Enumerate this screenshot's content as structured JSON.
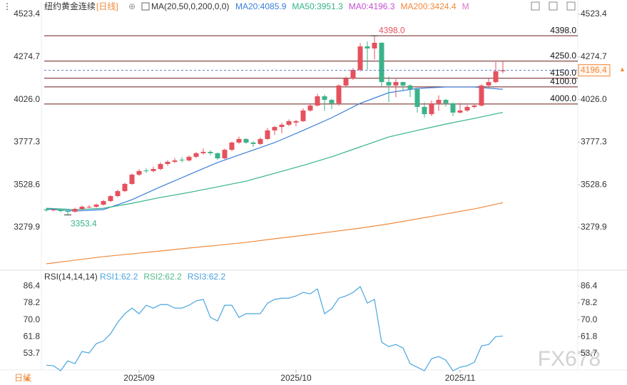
{
  "chart_data": [
    {
      "type": "candlestick",
      "title": "纽约黄金连续",
      "period": "[日线]",
      "indicator": "MA(20,50,0,200,0,0)",
      "up_color": "#e5515d",
      "down_color": "#3bb389",
      "open": [
        3385,
        3380,
        3384,
        3376,
        3372,
        3388,
        3398,
        3401,
        3413,
        3434,
        3463,
        3492,
        3534,
        3588,
        3612,
        3609,
        3621,
        3650,
        3663,
        3675,
        3671,
        3692,
        3713,
        3721,
        3713,
        3683,
        3733,
        3775,
        3796,
        3775,
        3767,
        3796,
        3846,
        3866,
        3879,
        3892,
        3900,
        3962,
        3991,
        4045,
        4024,
        4004,
        4108,
        4149,
        4199,
        4336,
        4324,
        4357,
        4128,
        4108,
        4128,
        4108,
        4087,
        3983,
        3941,
        4004,
        4024,
        4004,
        3950,
        3962,
        3983,
        3991,
        4108,
        4128,
        4191
      ],
      "high": [
        3392,
        3390,
        3391,
        3382,
        3395,
        3408,
        3410,
        3420,
        3441,
        3470,
        3500,
        3541,
        3595,
        3620,
        3625,
        3635,
        3660,
        3672,
        3685,
        3690,
        3700,
        3720,
        3740,
        3730,
        3718,
        3740,
        3782,
        3810,
        3800,
        3782,
        3805,
        3860,
        3872,
        3890,
        3910,
        3908,
        3975,
        4000,
        4060,
        4055,
        4030,
        4115,
        4160,
        4210,
        4355,
        4365,
        4398.0,
        4360,
        4160,
        4145,
        4130,
        4115,
        4090,
        4010,
        4020,
        4050,
        4030,
        4010,
        4005,
        3995,
        4000,
        4115,
        4150,
        4245,
        4250
      ],
      "low": [
        3372,
        3374,
        3368,
        3353.4,
        3366,
        3382,
        3392,
        3395,
        3408,
        3428,
        3456,
        3486,
        3528,
        3580,
        3598,
        3602,
        3614,
        3640,
        3655,
        3660,
        3665,
        3684,
        3705,
        3702,
        3675,
        3678,
        3726,
        3768,
        3768,
        3750,
        3760,
        3790,
        3820,
        3830,
        3870,
        3870,
        3895,
        3955,
        3985,
        3960,
        3970,
        3990,
        4100,
        4140,
        4190,
        4200,
        4260,
        4100,
        4010,
        4040,
        4080,
        4040,
        3950,
        3920,
        3930,
        3960,
        3985,
        3930,
        3945,
        3955,
        3975,
        3985,
        4095,
        4120,
        4180
      ],
      "close": [
        3380,
        3384,
        3376,
        3372,
        3388,
        3401,
        3401,
        3413,
        3434,
        3463,
        3492,
        3534,
        3588,
        3609,
        3609,
        3621,
        3650,
        3663,
        3671,
        3671,
        3692,
        3713,
        3721,
        3713,
        3683,
        3733,
        3775,
        3796,
        3775,
        3767,
        3796,
        3846,
        3866,
        3879,
        3900,
        3900,
        3962,
        3991,
        4045,
        4024,
        4004,
        4108,
        4149,
        4199,
        4336,
        4324,
        4357,
        4128,
        4108,
        4128,
        4108,
        4087,
        3983,
        3941,
        4004,
        4024,
        4004,
        3950,
        3962,
        3983,
        3991,
        4108,
        4128,
        4191,
        4196.4
      ],
      "series": [
        {
          "name": "MA20:4085.9",
          "color": "#3a7fd8",
          "x": [
            0,
            4,
            8,
            12,
            16,
            20,
            24,
            28,
            32,
            36,
            40,
            44,
            48,
            52,
            56,
            60,
            64
          ],
          "values": [
            3388,
            3376,
            3384,
            3442,
            3517,
            3588,
            3659,
            3717,
            3775,
            3846,
            3920,
            4004,
            4066,
            4091,
            4099,
            4099,
            4085.9
          ]
        },
        {
          "name": "MA50:3951.3",
          "color": "#35b38a",
          "x": [
            0,
            4,
            8,
            12,
            16,
            20,
            24,
            28,
            32,
            36,
            40,
            44,
            48,
            52,
            56,
            60,
            64
          ],
          "values": [
            3392,
            3384,
            3392,
            3421,
            3455,
            3484,
            3517,
            3550,
            3596,
            3642,
            3692,
            3750,
            3808,
            3846,
            3883,
            3916,
            3951.3
          ]
        },
        {
          "name": "MA200:3424.4",
          "color": "#f08a3c",
          "x": [
            0,
            4,
            8,
            12,
            16,
            20,
            24,
            28,
            32,
            36,
            40,
            44,
            48,
            52,
            56,
            60,
            64
          ],
          "values": [
            3068,
            3089,
            3110,
            3126,
            3143,
            3160,
            3176,
            3193,
            3214,
            3234,
            3255,
            3276,
            3301,
            3330,
            3359,
            3388,
            3424.4
          ]
        }
      ],
      "legend_extra": [
        {
          "text": "MA0:4196.3",
          "color": "#c64fd0"
        },
        {
          "text": "M",
          "color": "#e070c8"
        }
      ],
      "levels": [
        {
          "value": 4398,
          "label": "4398.0"
        },
        {
          "value": 4250,
          "label": "4250.0"
        },
        {
          "value": 4150,
          "label": "4150.0"
        },
        {
          "value": 4100,
          "label": "4100.0"
        },
        {
          "value": 4000,
          "label": "4000.0"
        }
      ],
      "max_label": "4398.0",
      "min_label": "3353.4",
      "ylim": [
        3034.8,
        4606.6
      ],
      "yticks": [
        4523.4,
        4274.7,
        {
          "value": 4026,
          "label": "4026.0"
        },
        3777.3,
        3528.6,
        3279.9
      ]
    },
    {
      "type": "line",
      "title": "RSI(14,14,14)",
      "categories": [
        null,
        null,
        null,
        null,
        null,
        null,
        null,
        null,
        null,
        null,
        null,
        null,
        null,
        "2025/09",
        null,
        null,
        null,
        null,
        null,
        null,
        null,
        null,
        null,
        null,
        null,
        null,
        null,
        null,
        null,
        null,
        null,
        null,
        null,
        null,
        null,
        "2025/10",
        null,
        null,
        null,
        null,
        null,
        null,
        null,
        null,
        null,
        null,
        null,
        null,
        null,
        null,
        null,
        null,
        null,
        null,
        null,
        null,
        null,
        null,
        "2025/11",
        null,
        null,
        null,
        null,
        null,
        null
      ],
      "series": [
        {
          "name": "RSI1:62.2",
          "color": "#4aa6e0",
          "values": [
            48.1,
            47.8,
            45.4,
            50.2,
            48.8,
            54.7,
            54.0,
            58.5,
            59.8,
            63.3,
            68.8,
            73.0,
            75.7,
            73.0,
            77.1,
            75.7,
            77.4,
            77.4,
            75.7,
            75.7,
            77.1,
            79.2,
            79.9,
            71.2,
            69.5,
            77.1,
            77.1,
            71.2,
            73.0,
            73.0,
            73.0,
            78.1,
            79.9,
            80.5,
            80.5,
            81.6,
            83.3,
            82.6,
            85.0,
            73.0,
            75.4,
            80.5,
            81.6,
            83.3,
            86.1,
            78.1,
            79.9,
            59.2,
            57.1,
            58.1,
            56.4,
            48.8,
            47.1,
            45.4,
            51.2,
            52.3,
            50.5,
            45.4,
            47.1,
            47.8,
            49.5,
            57.4,
            58.1,
            61.9,
            62.2
          ]
        }
      ],
      "legend_extra": [
        {
          "text": "RSI2:62.2",
          "color": "#52b98a"
        },
        {
          "text": "RSI3:62.2",
          "color": "#4a9fe0"
        }
      ],
      "ylim": [
        45.4,
        93.0
      ],
      "yticks": [
        86.4,
        78.2,
        {
          "value": 70,
          "label": "70.0"
        },
        61.8,
        53.7
      ]
    }
  ],
  "footer": {
    "period": "日线"
  },
  "watermark": "FX678"
}
